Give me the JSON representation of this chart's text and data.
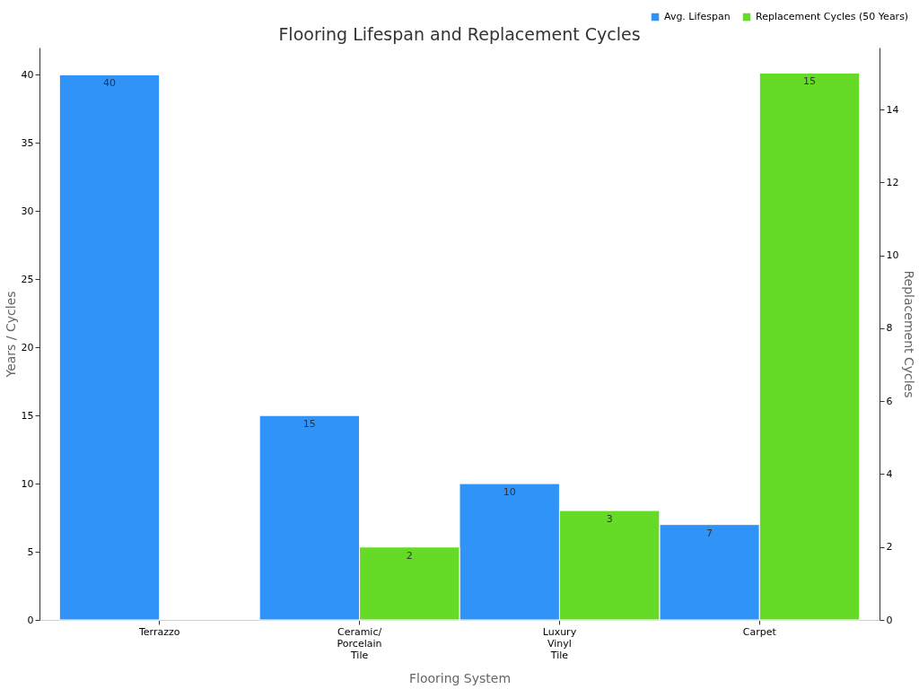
{
  "chart_data": {
    "type": "bar",
    "title": "Flooring Lifespan and Replacement Cycles",
    "xlabel": "Flooring System",
    "ylabel": "Years / Cycles",
    "y2label": "Replacement Cycles",
    "categories": [
      "Terrazzo",
      "Ceramic/ Porcelain Tile",
      "Luxury Vinyl Tile",
      "Carpet"
    ],
    "series": [
      {
        "name": "Avg. Lifespan",
        "color": "#2f93f7",
        "values": [
          40,
          15,
          10,
          7
        ]
      },
      {
        "name": "Replacement Cycles (50 Years)",
        "color": "#66db27",
        "values": [
          null,
          2,
          3,
          15
        ],
        "axis": "y2"
      }
    ],
    "ylim": [
      0,
      42
    ],
    "yticks": [
      0,
      5,
      10,
      15,
      20,
      25,
      30,
      35,
      40
    ],
    "y2lim": [
      0,
      15.7
    ],
    "y2ticks": [
      0,
      2,
      4,
      6,
      8,
      10,
      12,
      14
    ],
    "data_labels": true,
    "grid": false,
    "legend": "top right"
  }
}
